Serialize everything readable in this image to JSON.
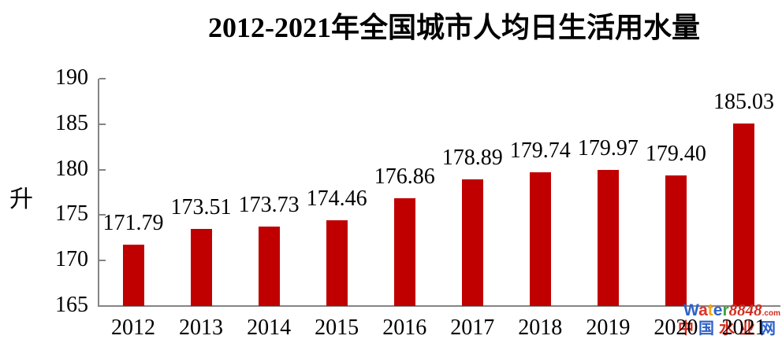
{
  "title": "2012-2021年全国城市人均日生活用水量",
  "y_axis": {
    "label": "升",
    "ticks": [
      190,
      185,
      180,
      175,
      170,
      165
    ]
  },
  "chart_data": {
    "type": "bar",
    "title": "2012-2021年全国城市人均日生活用水量",
    "categories": [
      "2012",
      "2013",
      "2014",
      "2015",
      "2016",
      "2017",
      "2018",
      "2019",
      "2020",
      "2021"
    ],
    "values": [
      171.79,
      173.51,
      173.73,
      174.46,
      176.86,
      178.89,
      179.74,
      179.97,
      179.4,
      185.03
    ],
    "data_labels": [
      "171.79",
      "173.51",
      "173.73",
      "174.46",
      "176.86",
      "178.89",
      "179.74",
      "179.97",
      "179.40",
      "185.03"
    ],
    "xlabel": "",
    "ylabel": "升",
    "ylim": [
      165,
      190
    ],
    "grid": false,
    "legend": false,
    "bar_color": "#C00000",
    "axis_color": "#848484",
    "text_color": "#000000"
  },
  "watermark": {
    "brand_letters": [
      {
        "ch": "W",
        "color": "#2E62C9"
      },
      {
        "ch": "a",
        "color": "#E03127"
      },
      {
        "ch": "t",
        "color": "#F2A51A"
      },
      {
        "ch": "e",
        "color": "#2E62C9"
      },
      {
        "ch": "r",
        "color": "#3FA23C"
      }
    ],
    "brand_suffix": "8848",
    "brand_suffix_color": "#D42B1E",
    "brand_tld": ".com",
    "brand_tld_color": "#D42B1E",
    "line2_chars": [
      {
        "ch": "中",
        "color": "#D42B1E"
      },
      {
        "ch": "国",
        "color": "#2E62C9"
      },
      {
        "ch": "水",
        "color": "#D42B1E"
      },
      {
        "ch": "业",
        "color": "#D42B1E"
      },
      {
        "ch": "网",
        "color": "#2E62C9"
      }
    ]
  }
}
